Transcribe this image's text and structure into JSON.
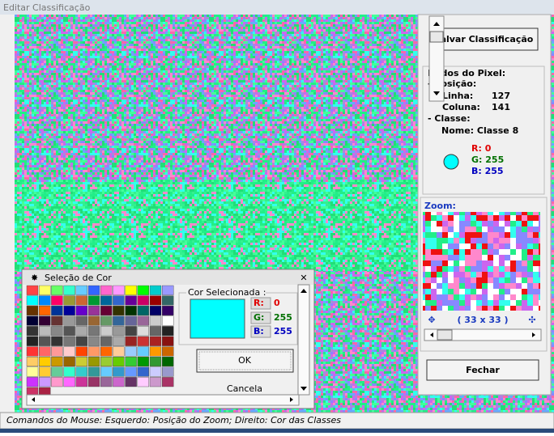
{
  "window": {
    "title": "Editar Classificação"
  },
  "panel": {
    "save_button": "Salvar Classificação",
    "pixel_data": {
      "heading": "Dados do Pixel:",
      "position": "- Posição:",
      "line_label": "Linha:",
      "line_value": "127",
      "column_label": "Coluna:",
      "column_value": "141",
      "class_heading": "- Classe:",
      "class_name": "Nome: Classe 8",
      "r": "R: 0",
      "g": "G: 255",
      "b": "B: 255"
    },
    "zoom": {
      "label": "Zoom:",
      "size": "( 33 x 33 )"
    },
    "close_button": "Fechar"
  },
  "dialog": {
    "title": "Seleção de Cor",
    "group": "Cor Selecionada :",
    "r_label": "R:",
    "r_value": "0",
    "g_label": "G:",
    "g_value": "255",
    "b_label": "B:",
    "b_value": "255",
    "ok": "OK",
    "cancel": "Cancela"
  },
  "status": "Comandos do Mouse: Esquerdo: Posição do Zoom; Direito: Cor das Classes"
}
